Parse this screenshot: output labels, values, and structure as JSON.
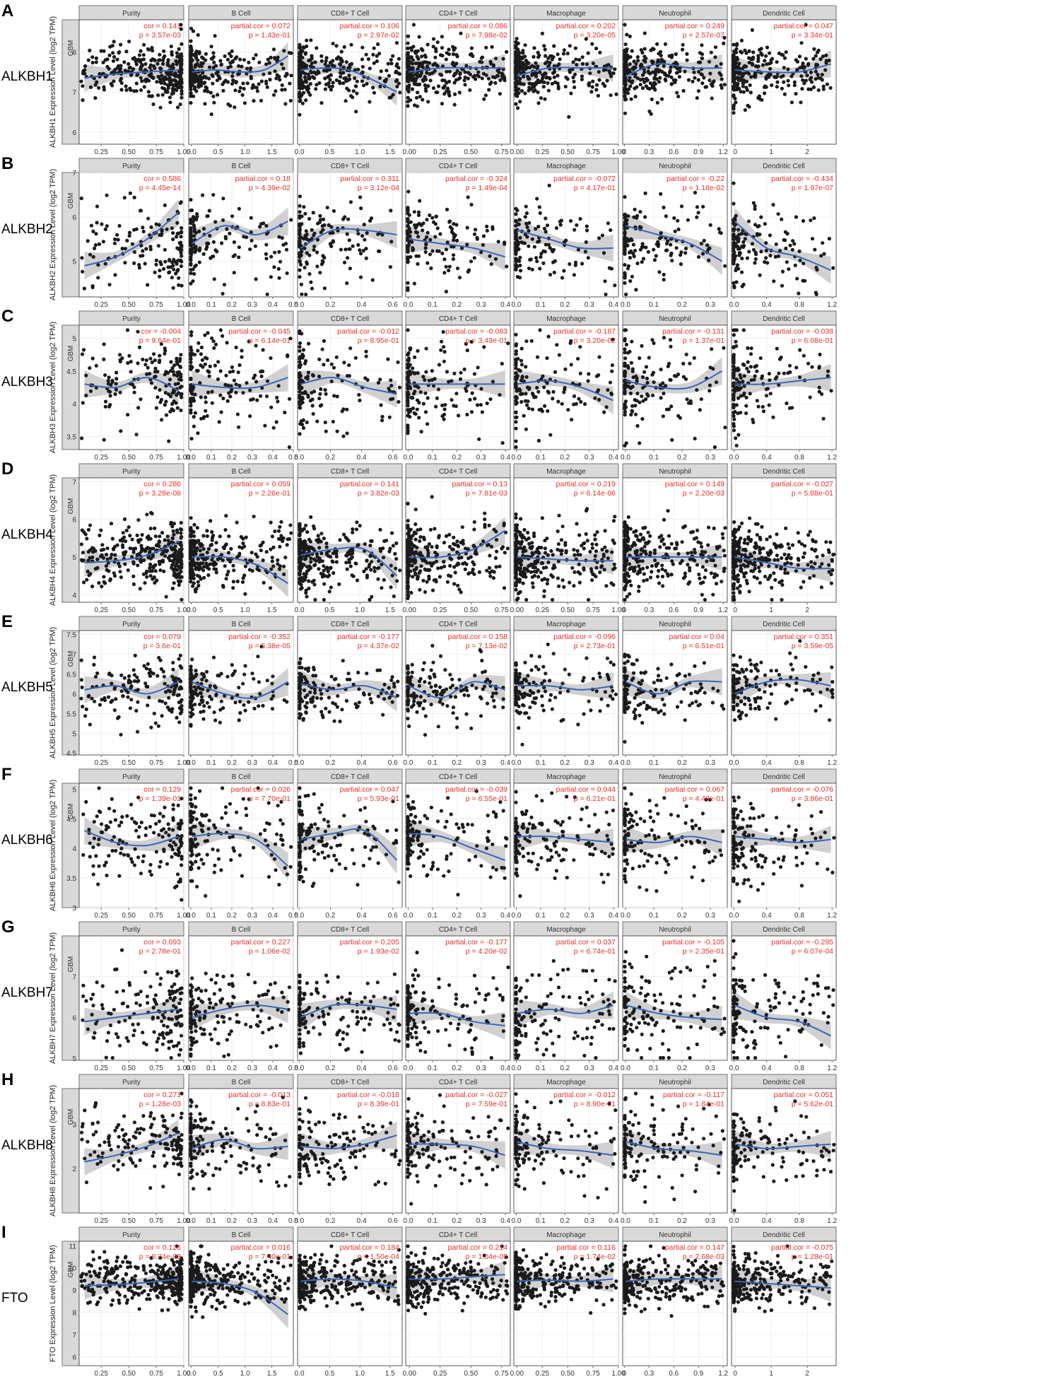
{
  "chart_data": {
    "type": "scatter",
    "title": "",
    "cancer_label": "GBM",
    "facets": [
      "Purity",
      "B Cell",
      "CD8+ T Cell",
      "CD4+ T Cell",
      "Macrophage",
      "Neutrophil",
      "Dendritic Cell"
    ],
    "colors": {
      "points": "#1a1a1a",
      "fit_line": "#3a66b8",
      "ci_band": "#c8c8c8",
      "stat_text": "#e8302a",
      "strip": "#d9d9d9"
    },
    "x_axes": {
      "set1": [
        {
          "min": 0.05,
          "max": 1.0,
          "ticks": [
            "0.25",
            "0.50",
            "0.75",
            "1.00"
          ]
        },
        {
          "min": -0.05,
          "max": 1.9,
          "ticks": [
            "0.0",
            "0.5",
            "1.0",
            "1.5"
          ]
        },
        {
          "min": -0.03,
          "max": 1.7,
          "ticks": [
            "0.0",
            "0.5",
            "1.0",
            "1.5"
          ]
        },
        {
          "min": -0.03,
          "max": 0.82,
          "ticks": [
            "0.00",
            "0.25",
            "0.50",
            "0.75"
          ]
        },
        {
          "min": -0.03,
          "max": 1.0,
          "ticks": [
            "0.00",
            "0.25",
            "0.50",
            "0.75",
            "1.00"
          ]
        },
        {
          "min": -0.02,
          "max": 1.25,
          "ticks": [
            "0",
            "0.3",
            "0.6",
            "0.9",
            "1.2"
          ]
        },
        {
          "min": -0.1,
          "max": 2.8,
          "ticks": [
            "0",
            "1",
            "2"
          ]
        }
      ],
      "set2": [
        {
          "min": 0.05,
          "max": 1.0,
          "ticks": [
            "0.25",
            "0.50",
            "0.75",
            "1.00"
          ]
        },
        {
          "min": -0.01,
          "max": 0.5,
          "ticks": [
            "0.0",
            "0.1",
            "0.2",
            "0.3",
            "0.4",
            "0.5"
          ]
        },
        {
          "min": -0.01,
          "max": 0.66,
          "ticks": [
            "0.0",
            "0.2",
            "0.4",
            "0.6"
          ]
        },
        {
          "min": -0.01,
          "max": 0.42,
          "ticks": [
            "0.0",
            "0.1",
            "0.2",
            "0.3",
            "0.4"
          ]
        },
        {
          "min": -0.01,
          "max": 0.42,
          "ticks": [
            "0.0",
            "0.1",
            "0.2",
            "0.3",
            "0.4"
          ]
        },
        {
          "min": -0.01,
          "max": 0.36,
          "ticks": [
            "0.0",
            "0.1",
            "0.2",
            "0.3"
          ]
        },
        {
          "min": -0.03,
          "max": 1.25,
          "ticks": [
            "0.0",
            "0.4",
            "0.8",
            "1.2"
          ]
        }
      ]
    },
    "rows": [
      {
        "letter": "A",
        "gene": "ALKBH1",
        "ylabel": "ALKBH1 Expression Level (log2 TPM)",
        "ylim": [
          5.7,
          8.8
        ],
        "yticks": [
          6,
          7,
          8
        ],
        "xset": "set1",
        "seed": 11,
        "n": 300,
        "base": 7.5,
        "spread": 0.35,
        "fits": [
          [
            7.35,
            7.45,
            7.5,
            7.55
          ],
          [
            7.5,
            7.55,
            7.5,
            7.55,
            7.9
          ],
          [
            7.55,
            7.6,
            7.55,
            7.3,
            7.0
          ],
          [
            7.5,
            7.6,
            7.6,
            7.6
          ],
          [
            7.4,
            7.6,
            7.6,
            7.6
          ],
          [
            7.4,
            7.7,
            7.6,
            7.6
          ],
          [
            7.55,
            7.5,
            7.5,
            7.7
          ]
        ],
        "stats": [
          [
            "cor = 0.141",
            "p = 3.57e-03"
          ],
          [
            "partial.cor = 0.072",
            "p = 1.43e-01"
          ],
          [
            "partial.cor = 0.106",
            "p = 2.97e-02"
          ],
          [
            "partial.cor = 0.086",
            "p = 7.98e-02"
          ],
          [
            "partial.cor = 0.202",
            "p = 3.20e-05"
          ],
          [
            "partial.cor = 0.249",
            "p = 2.57e-07"
          ],
          [
            "partial.cor = 0.047",
            "p = 3.34e-01"
          ]
        ]
      },
      {
        "letter": "B",
        "gene": "ALKBH2",
        "ylabel": "ALKBH2 Expression Level (log2 TPM)",
        "ylim": [
          4.2,
          7.0
        ],
        "yticks": [
          5,
          6,
          7
        ],
        "xset": "set2",
        "seed": 23,
        "n": 150,
        "base": 5.4,
        "spread": 0.45,
        "fits": [
          [
            4.9,
            5.1,
            5.5,
            6.1
          ],
          [
            5.4,
            5.8,
            5.6,
            5.9
          ],
          [
            5.3,
            5.7,
            5.7,
            5.6
          ],
          [
            5.5,
            5.4,
            5.3,
            5.1
          ],
          [
            5.7,
            5.5,
            5.3,
            5.3
          ],
          [
            5.8,
            5.6,
            5.4,
            5.0
          ],
          [
            5.9,
            5.3,
            5.1,
            4.8
          ]
        ],
        "stats": [
          [
            "cor = 0.586",
            "p = 4.45e-14"
          ],
          [
            "partial.cor = 0.18",
            "p = 4.39e-02"
          ],
          [
            "partial.cor = 0.311",
            "p = 3.12e-04"
          ],
          [
            "partial.cor = -0.324",
            "p = 1.49e-04"
          ],
          [
            "partial.cor = -0.072",
            "p = 4.17e-01"
          ],
          [
            "partial.cor = -0.22",
            "p = 1.18e-02"
          ],
          [
            "partial.cor = -0.434",
            "p = 1.97e-07"
          ]
        ]
      },
      {
        "letter": "C",
        "gene": "ALKBH3",
        "ylabel": "ALKBH3 Expression Level (log2 TPM)",
        "ylim": [
          3.3,
          5.2
        ],
        "yticks": [
          3.5,
          4.0,
          4.5,
          5.0
        ],
        "xset": "set2",
        "seed": 37,
        "n": 150,
        "base": 4.3,
        "spread": 0.35,
        "fits": [
          [
            4.3,
            4.25,
            4.4,
            4.2
          ],
          [
            4.3,
            4.25,
            4.25,
            4.4
          ],
          [
            4.3,
            4.4,
            4.25,
            4.15
          ],
          [
            4.3,
            4.3,
            4.3,
            4.3
          ],
          [
            4.3,
            4.35,
            4.25,
            4.05
          ],
          [
            4.35,
            4.25,
            4.25,
            4.5
          ],
          [
            4.3,
            4.3,
            4.35,
            4.4
          ]
        ],
        "stats": [
          [
            "cor = -0.004",
            "p = 9.64e-01"
          ],
          [
            "partial.cor = -0.045",
            "p = 6.14e-01"
          ],
          [
            "partial.cor = -0.012",
            "p = 8.95e-01"
          ],
          [
            "partial.cor = -0.083",
            "p = 3.43e-01"
          ],
          [
            "partial.cor = -0.187",
            "p = 3.20e-02"
          ],
          [
            "partial.cor = -0.131",
            "p = 1.37e-01"
          ],
          [
            "partial.cor = -0.038",
            "p = 6.68e-01"
          ]
        ]
      },
      {
        "letter": "D",
        "gene": "ALKBH4",
        "ylabel": "ALKBH4 Expression Level (log2 TPM)",
        "ylim": [
          3.8,
          7.1
        ],
        "yticks": [
          4,
          5,
          6,
          7
        ],
        "xset": "set1",
        "seed": 41,
        "n": 300,
        "base": 5.0,
        "spread": 0.45,
        "fits": [
          [
            4.85,
            4.9,
            5.05,
            5.4
          ],
          [
            5.0,
            5.0,
            4.8,
            4.3
          ],
          [
            5.05,
            5.2,
            5.2,
            4.5
          ],
          [
            5.0,
            5.0,
            5.2,
            5.7
          ],
          [
            5.0,
            4.95,
            4.9,
            4.9
          ],
          [
            5.0,
            5.0,
            5.0,
            5.0
          ],
          [
            5.0,
            4.85,
            4.7,
            4.7
          ]
        ],
        "stats": [
          [
            "cor = 0.286",
            "p = 3.28e-08"
          ],
          [
            "partial.cor = 0.059",
            "p = 2.26e-01"
          ],
          [
            "partial.cor = 0.141",
            "p = 3.82e-03"
          ],
          [
            "partial.cor = 0.13",
            "p = 7.81e-03"
          ],
          [
            "partial.cor = 0.219",
            "p = 6.14e-06"
          ],
          [
            "partial.cor = 0.149",
            "p = 2.20e-03"
          ],
          [
            "partial.cor = -0.027",
            "p = 5.88e-01"
          ]
        ]
      },
      {
        "letter": "E",
        "gene": "ALKBH5",
        "ylabel": "ALKBH5 Expression Level (log2 TPM)",
        "ylim": [
          4.45,
          7.6
        ],
        "yticks": [
          4.5,
          5.0,
          5.5,
          6.0,
          6.5,
          7.0,
          7.5
        ],
        "xset": "set2",
        "seed": 53,
        "n": 150,
        "base": 6.1,
        "spread": 0.4,
        "fits": [
          [
            6.1,
            6.2,
            6.0,
            6.3
          ],
          [
            6.3,
            6.0,
            5.9,
            6.3
          ],
          [
            6.25,
            6.1,
            6.2,
            5.9
          ],
          [
            6.2,
            5.9,
            6.3,
            6.1
          ],
          [
            6.2,
            6.2,
            6.1,
            6.2
          ],
          [
            6.3,
            6.0,
            6.3,
            6.3
          ],
          [
            6.0,
            6.3,
            6.35,
            6.2
          ]
        ],
        "stats": [
          [
            "cor = 0.079",
            "p = 3.6e-01"
          ],
          [
            "partial.cor = -0.352",
            "p = 5.38e-05"
          ],
          [
            "partial.cor = -0.177",
            "p = 4.37e-02"
          ],
          [
            "partial.cor = 0.158",
            "p = 7.13e-02"
          ],
          [
            "partial.cor = -0.096",
            "p = 2.73e-01"
          ],
          [
            "partial.cor = 0.04",
            "p = 6.51e-01"
          ],
          [
            "partial.cor = 0.351",
            "p = 3.59e-05"
          ]
        ]
      },
      {
        "letter": "F",
        "gene": "ALKBH6",
        "ylabel": "ALKBH6 Expression Level (log2 TPM)",
        "ylim": [
          3.0,
          5.1
        ],
        "yticks": [
          3.0,
          3.5,
          4.0,
          4.5,
          5.0
        ],
        "xset": "set2",
        "seed": 67,
        "n": 150,
        "base": 4.15,
        "spread": 0.35,
        "fits": [
          [
            4.3,
            4.1,
            4.05,
            4.2
          ],
          [
            4.2,
            4.25,
            4.15,
            3.7
          ],
          [
            4.15,
            4.25,
            4.3,
            3.8
          ],
          [
            4.25,
            4.2,
            4.0,
            3.8
          ],
          [
            4.2,
            4.2,
            4.15,
            4.1
          ],
          [
            4.15,
            4.1,
            4.2,
            4.1
          ],
          [
            4.2,
            4.15,
            4.1,
            4.15
          ]
        ],
        "stats": [
          [
            "cor = 0.129",
            "p = 1.39e-01"
          ],
          [
            "partial.cor = 0.026",
            "p = 7.70e-01"
          ],
          [
            "partial.cor = 0.047",
            "p = 5.93e-01"
          ],
          [
            "partial.cor = -0.039",
            "p = 6.55e-01"
          ],
          [
            "partial.cor = 0.044",
            "p = 6.21e-01"
          ],
          [
            "partial.cor = 0.067",
            "p = 4.48e-01"
          ],
          [
            "partial.cor = -0.076",
            "p = 3.86e-01"
          ]
        ]
      },
      {
        "letter": "G",
        "gene": "ALKBH7",
        "ylabel": "ALKBH7 Expression Level (log2 TPM)",
        "ylim": [
          4.95,
          8.0
        ],
        "yticks": [
          5,
          6,
          7
        ],
        "xset": "set2",
        "seed": 79,
        "n": 150,
        "base": 6.1,
        "spread": 0.5,
        "fits": [
          [
            5.9,
            6.0,
            6.1,
            6.2
          ],
          [
            6.0,
            6.2,
            6.3,
            6.2
          ],
          [
            6.0,
            6.3,
            6.3,
            6.2
          ],
          [
            6.1,
            6.1,
            5.9,
            5.8
          ],
          [
            6.1,
            6.2,
            6.1,
            6.3
          ],
          [
            6.3,
            6.1,
            6.0,
            5.95
          ],
          [
            6.3,
            6.0,
            5.9,
            5.55
          ]
        ],
        "stats": [
          [
            "cor = 0.093",
            "p = 2.78e-01"
          ],
          [
            "partial.cor = 0.227",
            "p = 1.06e-02"
          ],
          [
            "partial.cor = 0.205",
            "p = 1.93e-02"
          ],
          [
            "partial.cor = -0.177",
            "p = 4.20e-02"
          ],
          [
            "partial.cor = 0.037",
            "p = 6.74e-01"
          ],
          [
            "partial.cor = -0.105",
            "p = 2.35e-01"
          ],
          [
            "partial.cor = -0.295",
            "p = 6.07e-04"
          ]
        ]
      },
      {
        "letter": "H",
        "gene": "ALKBH8",
        "ylabel": "ALKBH8 Expression Level (log2 TPM)",
        "ylim": [
          1.0,
          3.8
        ],
        "yticks": [
          2,
          3
        ],
        "xset": "set2",
        "seed": 97,
        "n": 150,
        "base": 2.5,
        "spread": 0.45,
        "fits": [
          [
            2.15,
            2.3,
            2.5,
            2.8
          ],
          [
            2.45,
            2.65,
            2.45,
            2.5
          ],
          [
            2.5,
            2.45,
            2.55,
            2.75
          ],
          [
            2.55,
            2.55,
            2.5,
            2.3
          ],
          [
            2.6,
            2.45,
            2.4,
            2.3
          ],
          [
            2.6,
            2.45,
            2.4,
            2.3
          ],
          [
            2.55,
            2.45,
            2.5,
            2.55
          ]
        ],
        "stats": [
          [
            "cor = 0.271",
            "p = 1.28e-03"
          ],
          [
            "partial.cor = -0.013",
            "p = 8.83e-01"
          ],
          [
            "partial.cor = -0.018",
            "p = 8.39e-01"
          ],
          [
            "partial.cor = -0.027",
            "p = 7.59e-01"
          ],
          [
            "partial.cor = -0.012",
            "p = 8.90e-01"
          ],
          [
            "partial.cor = -0.117",
            "p = 1.84e-01"
          ],
          [
            "partial.cor = 0.051",
            "p = 5.62e-01"
          ]
        ]
      },
      {
        "letter": "I",
        "gene": "FTO",
        "ylabel": "FTO Expression Level (log2 TPM)",
        "ylim": [
          5.6,
          11.2
        ],
        "yticks": [
          6,
          7,
          8,
          9,
          10,
          11
        ],
        "xset": "set1",
        "seed": 113,
        "n": 320,
        "base": 9.4,
        "spread": 0.55,
        "fits": [
          [
            9.2,
            9.25,
            9.35,
            9.5
          ],
          [
            9.4,
            9.3,
            8.9,
            7.9
          ],
          [
            9.4,
            9.5,
            9.4,
            9.1
          ],
          [
            9.5,
            9.5,
            9.6,
            9.7
          ],
          [
            9.4,
            9.45,
            9.4,
            9.5
          ],
          [
            9.4,
            9.5,
            9.5,
            9.5
          ],
          [
            9.4,
            9.3,
            9.2,
            9.1
          ]
        ],
        "stats": [
          [
            "cor = 0.126",
            "p = 8.74e-03"
          ],
          [
            "partial.cor = 0.016",
            "p = 7.40e-01"
          ],
          [
            "partial.cor = 0.184",
            "p = 1.50e-04"
          ],
          [
            "partial.cor = 0.214",
            "p = 1.04e-05"
          ],
          [
            "partial.cor = 0.116",
            "p = 1.74e-02"
          ],
          [
            "partial.cor = 0.147",
            "p = 2.68e-03"
          ],
          [
            "partial.cor = -0.075",
            "p = 1.28e-01"
          ]
        ]
      }
    ]
  }
}
